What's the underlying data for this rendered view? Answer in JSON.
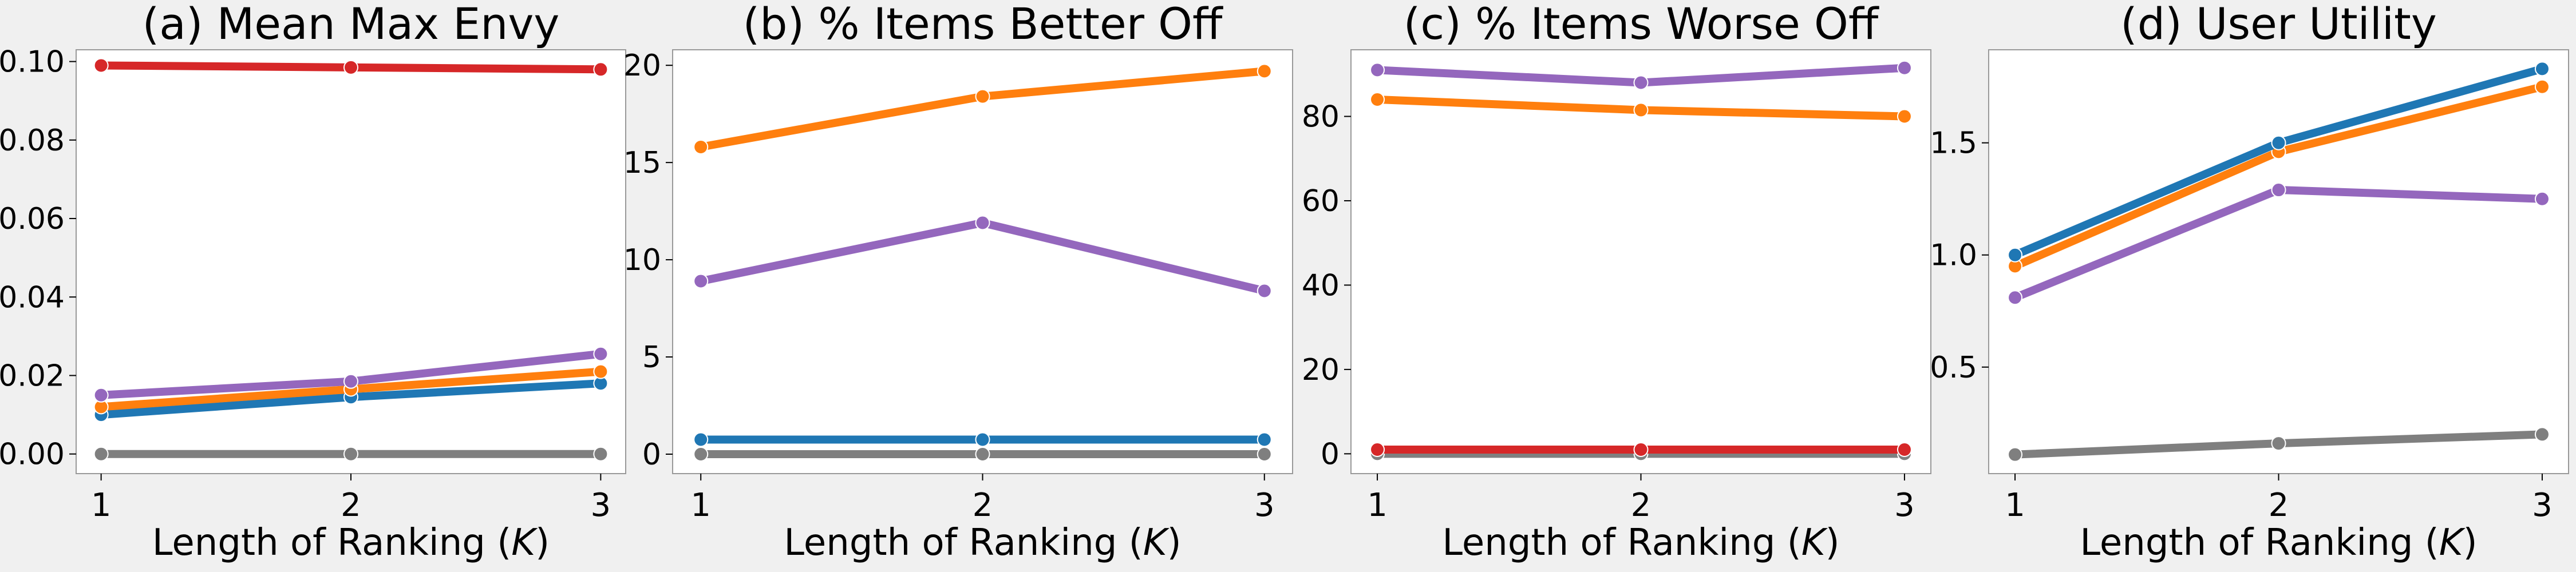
{
  "figure": {
    "background": "#f0f0f0",
    "plot_background": "#ffffff",
    "frame_color": "#999999"
  },
  "series_colors": {
    "blue": "#1f77b4",
    "orange": "#ff7f0e",
    "purple": "#9467bd",
    "red": "#d62728",
    "gray": "#7f7f7f"
  },
  "chart_data": [
    {
      "type": "line",
      "title": "(a) Mean Max Envy",
      "xlabel": "Length of Ranking (K)",
      "ylabel": "",
      "x": [
        1,
        2,
        3
      ],
      "xlim": [
        0.9,
        3.1
      ],
      "ylim": [
        -0.005,
        0.103
      ],
      "yticks": [
        "0.00",
        "0.02",
        "0.04",
        "0.06",
        "0.08",
        "0.10"
      ],
      "series": [
        {
          "color": "#7f7f7f",
          "values": [
            0.0,
            0.0,
            0.0
          ]
        },
        {
          "color": "#1f77b4",
          "values": [
            0.01,
            0.0145,
            0.018
          ]
        },
        {
          "color": "#ff7f0e",
          "values": [
            0.012,
            0.0165,
            0.021
          ]
        },
        {
          "color": "#9467bd",
          "values": [
            0.015,
            0.0185,
            0.0255
          ]
        },
        {
          "color": "#d62728",
          "values": [
            0.099,
            0.0985,
            0.098
          ]
        }
      ]
    },
    {
      "type": "line",
      "title": "(b) % Items Better Off",
      "xlabel": "Length of Ranking (K)",
      "ylabel": "",
      "x": [
        1,
        2,
        3
      ],
      "xlim": [
        0.9,
        3.1
      ],
      "ylim": [
        -1.0,
        20.8
      ],
      "yticks": [
        "0",
        "5",
        "10",
        "15",
        "20"
      ],
      "series": [
        {
          "color": "#7f7f7f",
          "values": [
            0.0,
            0.0,
            0.0
          ]
        },
        {
          "color": "#1f77b4",
          "values": [
            0.75,
            0.75,
            0.75
          ]
        },
        {
          "color": "#9467bd",
          "values": [
            8.9,
            11.9,
            8.4
          ]
        },
        {
          "color": "#ff7f0e",
          "values": [
            15.8,
            18.4,
            19.7
          ]
        }
      ]
    },
    {
      "type": "line",
      "title": "(c) % Items Worse Off",
      "xlabel": "Length of Ranking (K)",
      "ylabel": "",
      "x": [
        1,
        2,
        3
      ],
      "xlim": [
        0.9,
        3.1
      ],
      "ylim": [
        -4.7,
        95.8
      ],
      "yticks": [
        "0",
        "20",
        "40",
        "60",
        "80"
      ],
      "series": [
        {
          "color": "#7f7f7f",
          "values": [
            0.0,
            0.0,
            0.0
          ]
        },
        {
          "color": "#d62728",
          "values": [
            1.0,
            1.0,
            1.0
          ]
        },
        {
          "color": "#ff7f0e",
          "values": [
            84.0,
            81.5,
            80.0
          ]
        },
        {
          "color": "#9467bd",
          "values": [
            91.0,
            88.0,
            91.5
          ]
        }
      ]
    },
    {
      "type": "line",
      "title": "(d) User Utility",
      "xlabel": "Length of Ranking (K)",
      "ylabel": "",
      "x": [
        1,
        2,
        3
      ],
      "xlim": [
        0.9,
        3.1
      ],
      "ylim": [
        0.025,
        1.915
      ],
      "yticks": [
        "0.5",
        "1.0",
        "1.5"
      ],
      "series": [
        {
          "color": "#7f7f7f",
          "values": [
            0.11,
            0.16,
            0.2
          ]
        },
        {
          "color": "#9467bd",
          "values": [
            0.81,
            1.29,
            1.25
          ]
        },
        {
          "color": "#ff7f0e",
          "values": [
            0.95,
            1.46,
            1.75
          ]
        },
        {
          "color": "#1f77b4",
          "values": [
            1.0,
            1.5,
            1.83
          ]
        }
      ]
    }
  ]
}
